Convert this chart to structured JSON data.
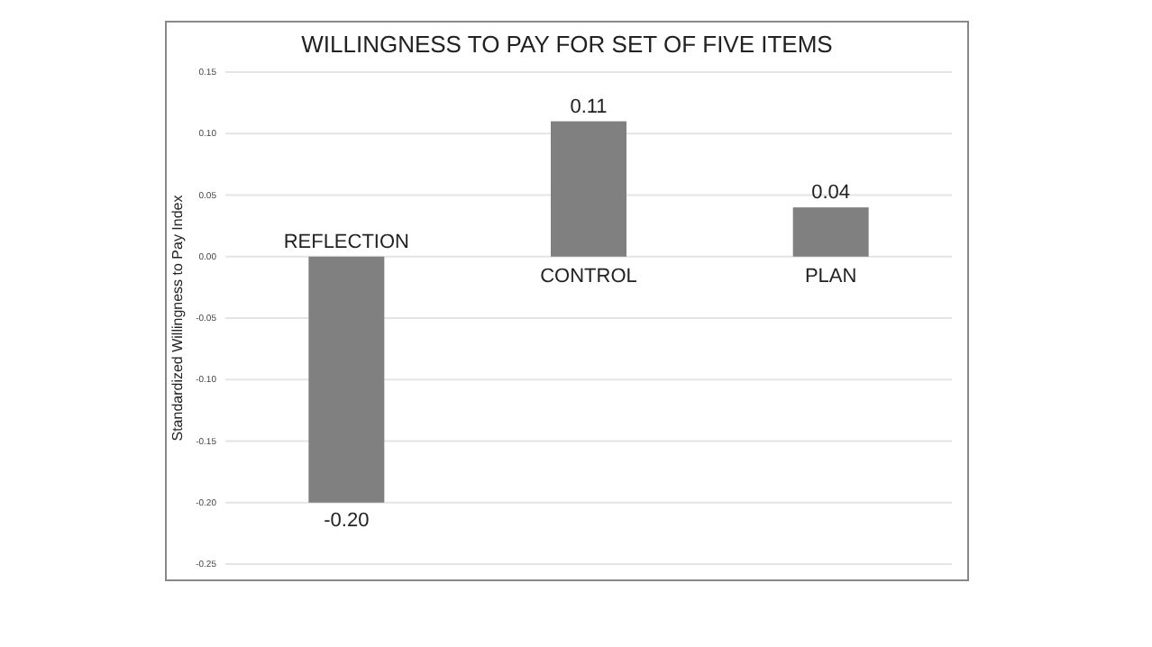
{
  "chart_data": {
    "type": "bar",
    "title": "WILLINGNESS TO PAY FOR SET OF FIVE ITEMS",
    "ylabel": "Standardized Willingness to Pay Index",
    "categories": [
      "REFLECTION",
      "CONTROL",
      "PLAN"
    ],
    "values": [
      -0.2,
      0.11,
      0.04
    ],
    "value_labels": [
      "-0.20",
      "0.11",
      "0.04"
    ],
    "color": "#808080",
    "ylim": [
      -0.25,
      0.15
    ],
    "yticks": [
      {
        "value": 0.15,
        "label": "0.15"
      },
      {
        "value": 0.1,
        "label": "0.10"
      },
      {
        "value": 0.05,
        "label": "0.05"
      },
      {
        "value": 0,
        "label": "0.00"
      },
      {
        "value": -0.05,
        "label": "-0.05"
      },
      {
        "value": -0.1,
        "label": "-0.10"
      },
      {
        "value": -0.15,
        "label": "-0.15"
      },
      {
        "value": -0.2,
        "label": "-0.20"
      },
      {
        "value": -0.25,
        "label": "-0.25"
      }
    ],
    "grid": "y"
  }
}
